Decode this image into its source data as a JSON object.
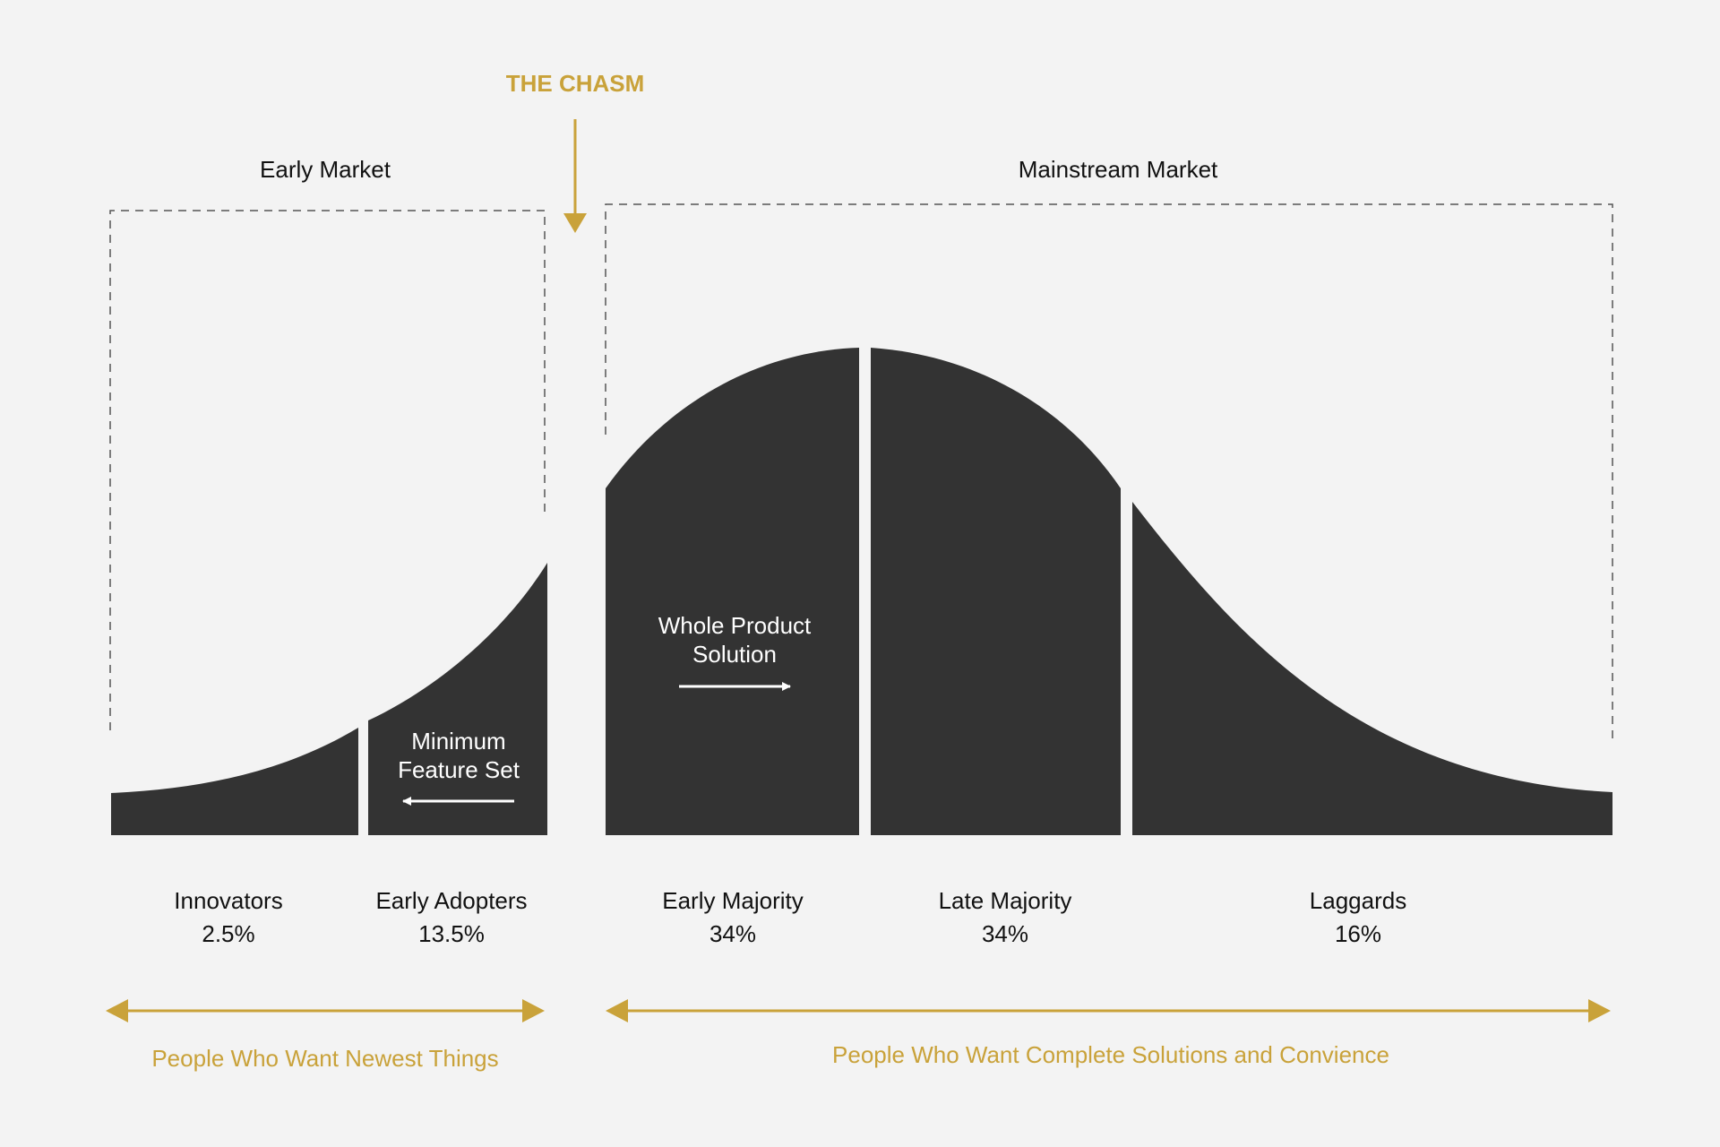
{
  "colors": {
    "background": "#f3f3f3",
    "curve": "#333333",
    "accent": "#c9a23a",
    "text": "#111111",
    "dash": "#555555"
  },
  "chasm": {
    "label": "THE CHASM"
  },
  "markets": {
    "early": "Early Market",
    "mainstream": "Mainstream Market"
  },
  "curve_labels": {
    "minimum_feature_set": [
      "Minimum",
      "Feature Set"
    ],
    "whole_product_solution": [
      "Whole Product",
      "Solution"
    ]
  },
  "segments": [
    {
      "name": "Innovators",
      "percent": "2.5%"
    },
    {
      "name": "Early Adopters",
      "percent": "13.5%"
    },
    {
      "name": "Early Majority",
      "percent": "34%"
    },
    {
      "name": "Late Majority",
      "percent": "34%"
    },
    {
      "name": "Laggards",
      "percent": "16%"
    }
  ],
  "audiences": {
    "early": "People Who Want Newest Things",
    "mainstream": "People Who Want Complete Solutions and Convience"
  }
}
